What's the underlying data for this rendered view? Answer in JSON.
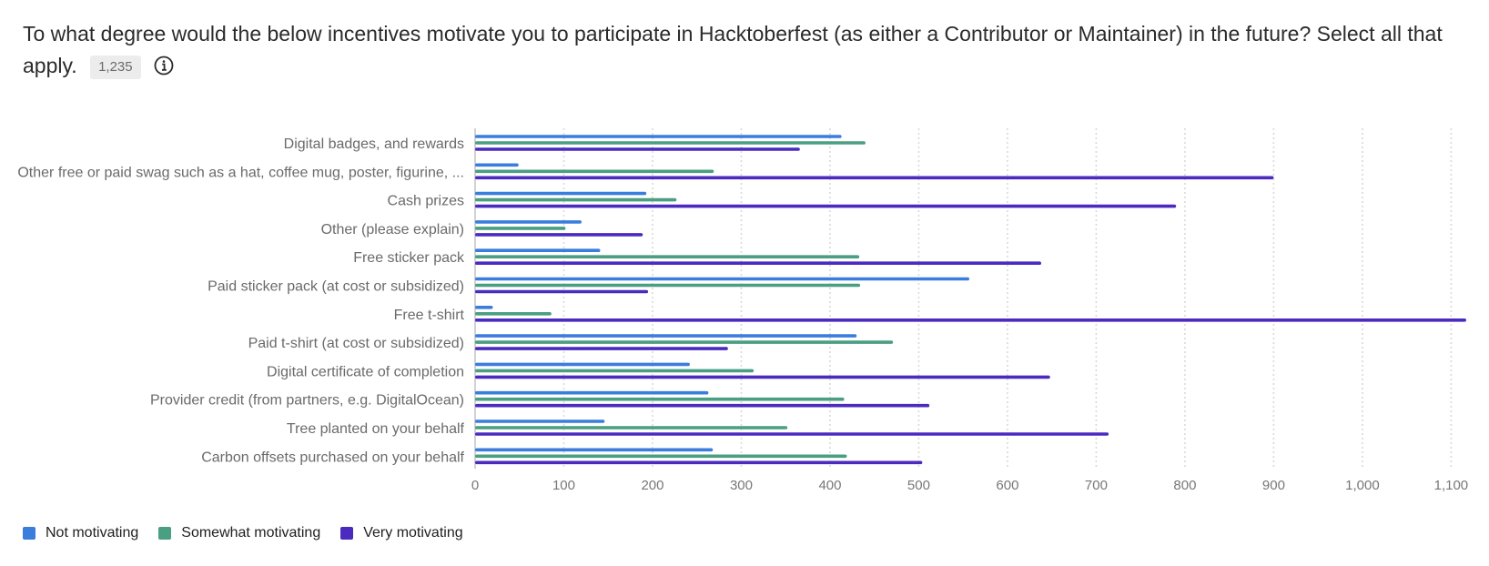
{
  "question": {
    "text": "To what degree would the below incentives motivate you to participate in Hacktoberfest (as either a Contributor or Maintainer) in the future? Select all that apply.",
    "response_count": "1,235",
    "info_icon": "info-circle-icon"
  },
  "chart_data": {
    "type": "bar",
    "orientation": "horizontal",
    "categories": [
      "Digital badges, and rewards",
      "Other free or paid swag such as a hat, coffee mug, poster, figurine, ...",
      "Cash prizes",
      "Other (please explain)",
      "Free sticker pack",
      "Paid sticker pack (at cost or subsidized)",
      "Free t-shirt",
      "Paid t-shirt (at cost or subsidized)",
      "Digital certificate of completion",
      "Provider credit (from partners, e.g. DigitalOcean)",
      "Tree planted on your behalf",
      "Carbon offsets purchased on your behalf"
    ],
    "series": [
      {
        "name": "Not motivating",
        "color": "#3b7ddd",
        "values": [
          413,
          49,
          193,
          120,
          141,
          557,
          20,
          430,
          242,
          263,
          146,
          268
        ]
      },
      {
        "name": "Somewhat motivating",
        "color": "#4a9e82",
        "values": [
          440,
          269,
          227,
          102,
          433,
          434,
          86,
          471,
          314,
          416,
          352,
          419
        ]
      },
      {
        "name": "Very motivating",
        "color": "#4b2bbf",
        "values": [
          366,
          900,
          790,
          189,
          638,
          195,
          1117,
          285,
          648,
          512,
          714,
          504
        ]
      }
    ],
    "xticks": [
      "0",
      "100",
      "200",
      "300",
      "400",
      "500",
      "600",
      "700",
      "800",
      "900",
      "1,000",
      "1,100"
    ],
    "xlim": [
      0,
      1117
    ],
    "grid": true,
    "legend_position": "bottom-left"
  }
}
